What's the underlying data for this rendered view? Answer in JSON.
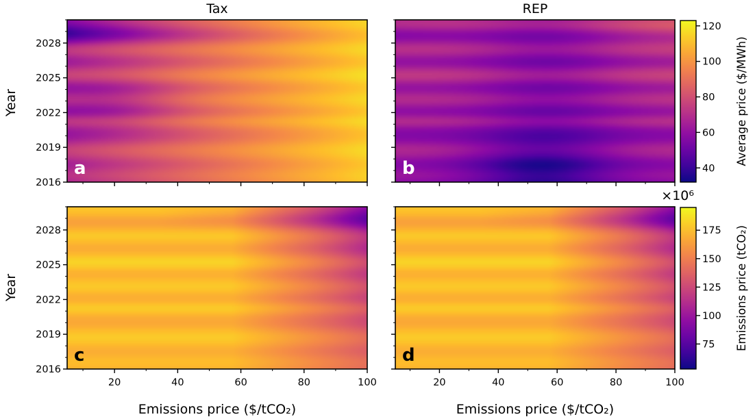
{
  "chart_data": [
    {
      "type": "heatmap",
      "panel": "a",
      "title": "Tax",
      "xlabel": "",
      "ylabel": "Year",
      "xlim": [
        5,
        100
      ],
      "ylim": [
        2016,
        2030
      ],
      "xticks": [
        20,
        40,
        60,
        80,
        100
      ],
      "yticks": [
        2016,
        2019,
        2022,
        2025,
        2028
      ],
      "colormap": "plasma",
      "variable": "average_price",
      "approx_value_range": [
        55,
        120
      ],
      "letter_color": "#ffffff"
    },
    {
      "type": "heatmap",
      "panel": "b",
      "title": "REP",
      "xlabel": "",
      "ylabel": "",
      "xlim": [
        5,
        100
      ],
      "ylim": [
        2016,
        2030
      ],
      "xticks": [
        20,
        40,
        60,
        80,
        100
      ],
      "yticks": [
        2016,
        2019,
        2022,
        2025,
        2028
      ],
      "colormap": "plasma",
      "variable": "average_price",
      "approx_value_range": [
        32,
        95
      ],
      "letter_color": "#ffffff"
    },
    {
      "type": "heatmap",
      "panel": "c",
      "title": "",
      "xlabel": "Emissions price ($/tCO₂)",
      "ylabel": "Year",
      "xlim": [
        5,
        100
      ],
      "ylim": [
        2016,
        2030
      ],
      "xticks": [
        20,
        40,
        60,
        80,
        100
      ],
      "yticks": [
        2016,
        2019,
        2022,
        2025,
        2028
      ],
      "colormap": "plasma",
      "variable": "emissions",
      "approx_value_range": [
        55,
        190
      ],
      "letter_color": "#000000"
    },
    {
      "type": "heatmap",
      "panel": "d",
      "title": "",
      "xlabel": "Emissions price ($/tCO₂)",
      "ylabel": "",
      "xlim": [
        5,
        100
      ],
      "ylim": [
        2016,
        2030
      ],
      "xticks": [
        20,
        40,
        60,
        80,
        100
      ],
      "yticks": [
        2016,
        2019,
        2022,
        2025,
        2028
      ],
      "colormap": "plasma",
      "variable": "emissions",
      "approx_value_range": [
        55,
        190
      ],
      "letter_color": "#000000"
    }
  ],
  "colorbars": [
    {
      "label": "Average price ($/MWh)",
      "range": [
        32,
        123
      ],
      "ticks": [
        40,
        60,
        80,
        100,
        120
      ],
      "multiplier": "",
      "colormap": "plasma"
    },
    {
      "label": "Emissions price (tCO₂)",
      "range": [
        53,
        195
      ],
      "ticks": [
        75,
        100,
        125,
        150,
        175
      ],
      "multiplier": "×10⁶",
      "colormap": "plasma"
    }
  ]
}
